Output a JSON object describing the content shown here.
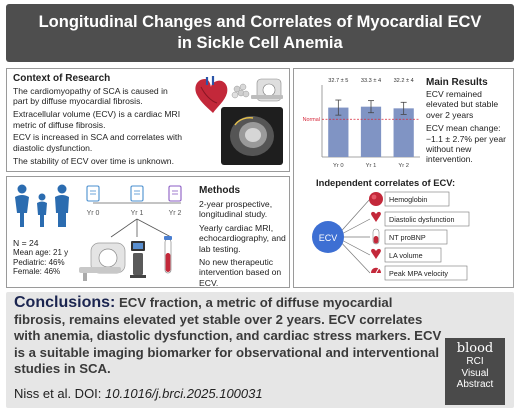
{
  "title": {
    "line1": "Longitudinal Changes and Correlates of Myocardial ECV",
    "line2": "in Sickle Cell Anemia"
  },
  "context": {
    "heading": "Context of Research",
    "items": [
      "The cardiomyopathy of SCA is caused in part by diffuse myocardial fibrosis.",
      "Extracellular volume (ECV) is a cardiac MRI metric of diffuse fibrosis.",
      "ECV is increased in SCA and correlates with diastolic dysfunction.",
      "The stability of ECV over time is unknown."
    ]
  },
  "methods": {
    "heading": "Methods",
    "items": [
      "2-year prospective, longitudinal study.",
      "Yearly cardiac MRI, echocardiography, and lab testing.",
      "No new therapeutic intervention based on ECV."
    ],
    "timeline": [
      "Yr 0",
      "Yr 1",
      "Yr 2"
    ],
    "stats": [
      "N = 24",
      "Mean age: 21 y",
      "Pediatric: 46%",
      "Female: 46%"
    ]
  },
  "results": {
    "heading": "Main Results",
    "items": [
      "ECV remained elevated but stable over 2 years",
      "ECV mean change: −1.1 ± 2.7% per year without new intervention."
    ],
    "correlates_heading": "Independent correlates of ECV:",
    "center_node": "ECV",
    "correlates": [
      "Hemoglobin",
      "Diastolic dysfunction",
      "NT proBNP",
      "LA volume",
      "Peak MPA velocity"
    ]
  },
  "chart_data": {
    "type": "bar",
    "categories": [
      "Yr 0",
      "Yr 1",
      "Yr 2"
    ],
    "values": [
      32.7,
      33.3,
      32.2
    ],
    "errors": [
      5,
      4,
      4
    ],
    "data_labels": [
      "32.7 ± 5",
      "33.3 ± 4",
      "32.2 ± 4"
    ],
    "reference_line": {
      "label": "Normal",
      "value": 25
    },
    "ylim": [
      0,
      45
    ],
    "bar_color": "#8094c4",
    "reference_color": "#d6283b"
  },
  "conclusions": {
    "label": "Conclusions:",
    "text": "ECV fraction, a metric of diffuse myocardial fibrosis, remains elevated yet stable over 2 years. ECV correlates with anemia, diastolic dysfunction, and cardiac stress markers. ECV is a suitable imaging biomarker for observational and interventional studies in SCA."
  },
  "citation": {
    "text": "Niss et al. DOI: ",
    "doi": "10.1016/j.brci.2025.100031"
  },
  "brand": {
    "logo": "blood",
    "lines": [
      "RCI",
      "Visual",
      "Abstract"
    ]
  },
  "colors": {
    "title_bg": "#4e4e4e",
    "conclusion_bg": "#e6e6e6",
    "accent_navy": "#1b2550",
    "ecv_node": "#3d6fd3",
    "icon_red": "#c3283a",
    "figure_blue": "#2b6cb0"
  }
}
